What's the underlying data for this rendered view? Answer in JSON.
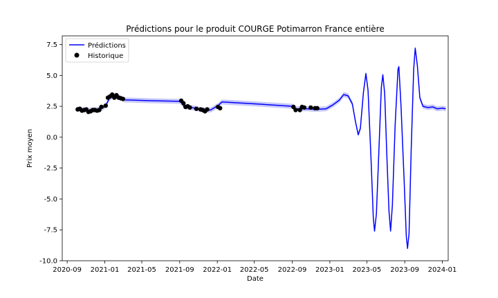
{
  "chart_data": {
    "type": "line",
    "title": "Prédictions pour le produit COURGE Potimarron France entière",
    "xlabel": "Date",
    "ylabel": "Prix moyen",
    "ylim": [
      -10.0,
      8.2
    ],
    "xlim": [
      "2020-08-16",
      "2024-01-20"
    ],
    "grid": false,
    "legend": "top-left",
    "x_ticks": [
      "2020-09",
      "2021-01",
      "2021-05",
      "2021-09",
      "2022-01",
      "2022-05",
      "2022-09",
      "2023-01",
      "2023-05",
      "2023-09",
      "2024-01"
    ],
    "y_ticks": [
      -10.0,
      -7.5,
      -5.0,
      -2.5,
      0.0,
      2.5,
      5.0,
      7.5
    ],
    "series": [
      {
        "name": "Prédictions",
        "color": "#0000ff",
        "band_color": "#c8c8fa",
        "band_halfwidth": 0.2,
        "points": [
          [
            "2020-10-01",
            2.27
          ],
          [
            "2020-10-20",
            2.22
          ],
          [
            "2020-11-10",
            2.18
          ],
          [
            "2020-11-25",
            2.2
          ],
          [
            "2020-12-10",
            2.25
          ],
          [
            "2020-12-25",
            2.35
          ],
          [
            "2021-01-05",
            2.6
          ],
          [
            "2021-01-15",
            3.1
          ],
          [
            "2021-01-25",
            3.3
          ],
          [
            "2021-02-10",
            3.35
          ],
          [
            "2021-02-20",
            3.2
          ],
          [
            "2021-03-05",
            3.02
          ],
          [
            "2021-06-01",
            2.95
          ],
          [
            "2021-08-31",
            2.9
          ],
          [
            "2021-09-08",
            2.8
          ],
          [
            "2021-09-15",
            2.48
          ],
          [
            "2021-10-20",
            2.35
          ],
          [
            "2021-11-15",
            2.2
          ],
          [
            "2021-12-10",
            2.2
          ],
          [
            "2022-01-03",
            2.55
          ],
          [
            "2022-01-16",
            2.85
          ],
          [
            "2022-05-01",
            2.7
          ],
          [
            "2022-09-03",
            2.5
          ],
          [
            "2022-09-12",
            2.3
          ],
          [
            "2022-10-20",
            2.3
          ],
          [
            "2022-11-15",
            2.25
          ],
          [
            "2022-12-20",
            2.3
          ],
          [
            "2023-01-10",
            2.6
          ],
          [
            "2023-02-01",
            3.0
          ],
          [
            "2023-02-15",
            3.45
          ],
          [
            "2023-03-01",
            3.35
          ],
          [
            "2023-03-15",
            2.7
          ],
          [
            "2023-03-25",
            1.3
          ],
          [
            "2023-04-03",
            0.2
          ],
          [
            "2023-04-10",
            0.7
          ],
          [
            "2023-04-20",
            3.6
          ],
          [
            "2023-04-28",
            5.15
          ],
          [
            "2023-05-05",
            3.8
          ],
          [
            "2023-05-15",
            -2.0
          ],
          [
            "2023-05-22",
            -6.5
          ],
          [
            "2023-05-26",
            -7.6
          ],
          [
            "2023-06-01",
            -6.2
          ],
          [
            "2023-06-10",
            -0.5
          ],
          [
            "2023-06-17",
            4.0
          ],
          [
            "2023-06-22",
            5.05
          ],
          [
            "2023-06-28",
            3.5
          ],
          [
            "2023-07-05",
            -1.5
          ],
          [
            "2023-07-12",
            -6.0
          ],
          [
            "2023-07-17",
            -7.6
          ],
          [
            "2023-07-23",
            -5.5
          ],
          [
            "2023-08-01",
            1.0
          ],
          [
            "2023-08-10",
            5.5
          ],
          [
            "2023-08-13",
            5.7
          ],
          [
            "2023-08-20",
            2.5
          ],
          [
            "2023-08-30",
            -3.5
          ],
          [
            "2023-09-06",
            -8.0
          ],
          [
            "2023-09-10",
            -9.0
          ],
          [
            "2023-09-15",
            -7.8
          ],
          [
            "2023-09-22",
            -1.0
          ],
          [
            "2023-09-30",
            5.5
          ],
          [
            "2023-10-05",
            7.2
          ],
          [
            "2023-10-12",
            5.8
          ],
          [
            "2023-10-20",
            3.2
          ],
          [
            "2023-10-30",
            2.5
          ],
          [
            "2023-11-15",
            2.4
          ],
          [
            "2023-12-01",
            2.45
          ],
          [
            "2023-12-15",
            2.3
          ],
          [
            "2024-01-01",
            2.35
          ],
          [
            "2024-01-12",
            2.3
          ]
        ]
      },
      {
        "name": "Historique",
        "color": "#000000",
        "points": [
          [
            "2020-10-05",
            2.25
          ],
          [
            "2020-10-12",
            2.3
          ],
          [
            "2020-10-19",
            2.15
          ],
          [
            "2020-10-26",
            2.2
          ],
          [
            "2020-11-02",
            2.25
          ],
          [
            "2020-11-09",
            2.05
          ],
          [
            "2020-11-16",
            2.1
          ],
          [
            "2020-11-23",
            2.2
          ],
          [
            "2020-11-30",
            2.2
          ],
          [
            "2020-12-07",
            2.15
          ],
          [
            "2020-12-14",
            2.2
          ],
          [
            "2020-12-21",
            2.45
          ],
          [
            "2021-01-04",
            2.55
          ],
          [
            "2021-01-11",
            3.2
          ],
          [
            "2021-01-18",
            3.3
          ],
          [
            "2021-01-25",
            3.45
          ],
          [
            "2021-02-01",
            3.2
          ],
          [
            "2021-02-08",
            3.4
          ],
          [
            "2021-02-15",
            3.2
          ],
          [
            "2021-02-22",
            3.15
          ],
          [
            "2021-03-01",
            3.1
          ],
          [
            "2021-09-06",
            2.95
          ],
          [
            "2021-09-13",
            2.75
          ],
          [
            "2021-09-20",
            2.45
          ],
          [
            "2021-09-27",
            2.5
          ],
          [
            "2021-10-04",
            2.4
          ],
          [
            "2021-10-25",
            2.3
          ],
          [
            "2021-11-08",
            2.25
          ],
          [
            "2021-11-15",
            2.2
          ],
          [
            "2021-11-22",
            2.1
          ],
          [
            "2021-11-29",
            2.25
          ],
          [
            "2022-01-03",
            2.45
          ],
          [
            "2022-01-10",
            2.35
          ],
          [
            "2022-09-05",
            2.45
          ],
          [
            "2022-09-12",
            2.2
          ],
          [
            "2022-09-26",
            2.2
          ],
          [
            "2022-10-03",
            2.45
          ],
          [
            "2022-10-10",
            2.4
          ],
          [
            "2022-10-31",
            2.4
          ],
          [
            "2022-11-14",
            2.35
          ],
          [
            "2022-11-21",
            2.35
          ]
        ]
      }
    ]
  }
}
